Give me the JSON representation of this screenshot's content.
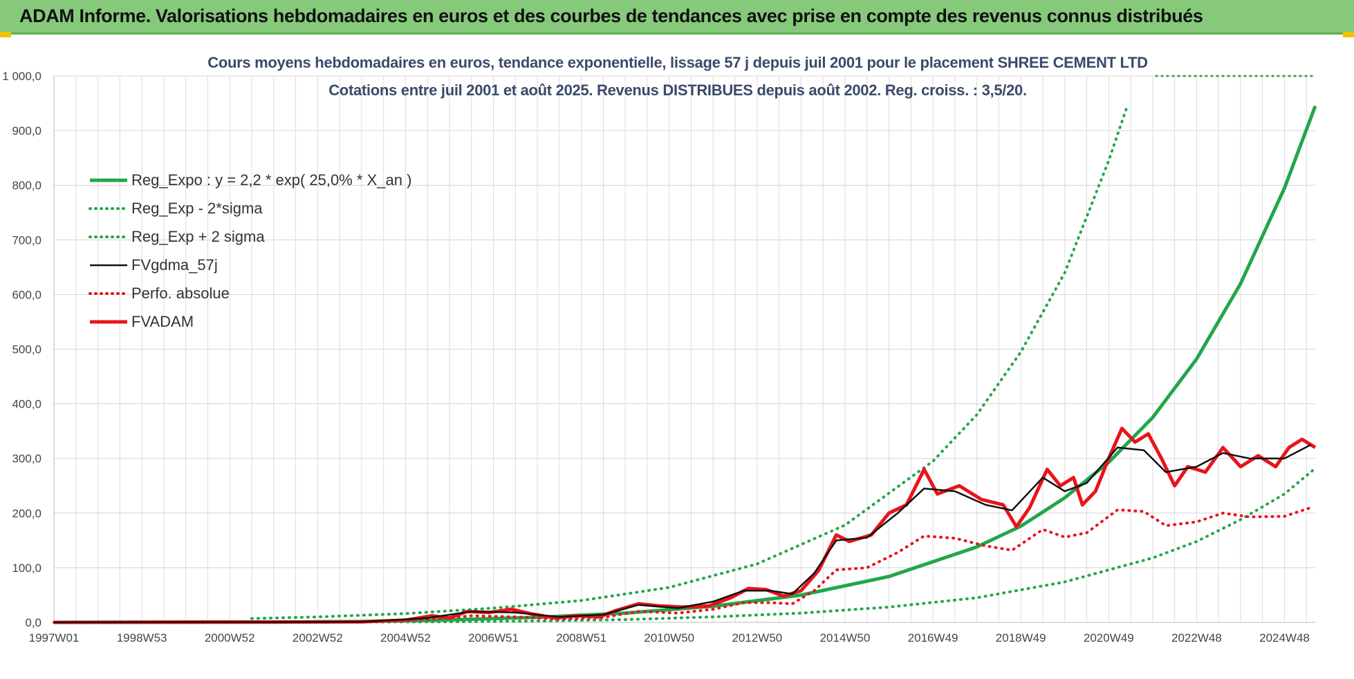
{
  "header": {
    "title": "ADAM Informe. Valorisations hebdomadaires en euros et des courbes de tendances avec prise en compte des revenus connus distribués"
  },
  "chart_data": {
    "type": "line",
    "title_line1": "Cours moyens hebdomadaires en euros, tendance exponentielle, lissage 57 j depuis juil 2001 pour le placement SHREE CEMENT LTD",
    "title_line2": "Cotations entre juil 2001 et août 2025. Revenus DISTRIBUES depuis août 2002. Reg. croiss. : 3,5/20.",
    "xlabel": "",
    "ylabel": "",
    "xlim": [
      1997.0,
      2025.7
    ],
    "ylim": [
      0,
      1000
    ],
    "grid": true,
    "legend_position": "top-left",
    "y_ticks": [
      "0,0",
      "100,0",
      "200,0",
      "300,0",
      "400,0",
      "500,0",
      "600,0",
      "700,0",
      "800,0",
      "900,0",
      "1 000,0"
    ],
    "x_ticks": [
      {
        "x": 1997.0,
        "label": "1997W01"
      },
      {
        "x": 1999.0,
        "label": "1998W53"
      },
      {
        "x": 2001.0,
        "label": "2000W52"
      },
      {
        "x": 2003.0,
        "label": "2002W52"
      },
      {
        "x": 2005.0,
        "label": "2004W52"
      },
      {
        "x": 2007.0,
        "label": "2006W51"
      },
      {
        "x": 2009.0,
        "label": "2008W51"
      },
      {
        "x": 2011.0,
        "label": "2010W50"
      },
      {
        "x": 2013.0,
        "label": "2012W50"
      },
      {
        "x": 2015.0,
        "label": "2014W50"
      },
      {
        "x": 2017.0,
        "label": "2016W49"
      },
      {
        "x": 2019.0,
        "label": "2018W49"
      },
      {
        "x": 2021.0,
        "label": "2020W49"
      },
      {
        "x": 2023.0,
        "label": "2022W48"
      },
      {
        "x": 2025.0,
        "label": "2024W48"
      }
    ],
    "series": [
      {
        "name": "Reg_Expo : y = 2,2 * exp( 25,0% *  X_an )",
        "color": "#22a64a",
        "style": "solid-thick",
        "points": [
          [
            1997.0,
            0.0
          ],
          [
            2002.0,
            0.4
          ],
          [
            2004.0,
            1.5
          ],
          [
            2006.0,
            4.5
          ],
          [
            2008.0,
            9.2
          ],
          [
            2010.0,
            17.0
          ],
          [
            2012.0,
            29.6
          ],
          [
            2014.0,
            50.0
          ],
          [
            2016.0,
            84.0
          ],
          [
            2018.0,
            138.0
          ],
          [
            2019.0,
            176.0
          ],
          [
            2020.0,
            228.0
          ],
          [
            2021.0,
            293.0
          ],
          [
            2022.0,
            375.0
          ],
          [
            2023.0,
            482.0
          ],
          [
            2024.0,
            620.0
          ],
          [
            2025.0,
            795.0
          ],
          [
            2025.7,
            945.0
          ]
        ]
      },
      {
        "name": "Reg_Exp - 2*sigma",
        "color": "#22a64a",
        "style": "dotted",
        "points": [
          [
            2001.5,
            0.0
          ],
          [
            2006.0,
            1.0
          ],
          [
            2008.0,
            2.5
          ],
          [
            2010.0,
            5.0
          ],
          [
            2012.0,
            10.0
          ],
          [
            2014.0,
            17.0
          ],
          [
            2016.0,
            28.0
          ],
          [
            2018.0,
            45.0
          ],
          [
            2020.0,
            74.0
          ],
          [
            2022.0,
            118.0
          ],
          [
            2023.0,
            148.0
          ],
          [
            2024.0,
            188.0
          ],
          [
            2025.0,
            235.0
          ],
          [
            2025.7,
            282.0
          ]
        ]
      },
      {
        "name": "Reg_Exp + 2 sigma",
        "color": "#22a64a",
        "style": "dotted",
        "points": [
          [
            2001.5,
            7.0
          ],
          [
            2003.0,
            10.0
          ],
          [
            2005.0,
            16.0
          ],
          [
            2007.0,
            26.0
          ],
          [
            2009.0,
            40.0
          ],
          [
            2011.0,
            64.0
          ],
          [
            2013.0,
            107.0
          ],
          [
            2015.0,
            178.0
          ],
          [
            2017.0,
            295.0
          ],
          [
            2018.0,
            380.0
          ],
          [
            2019.0,
            495.0
          ],
          [
            2020.0,
            640.0
          ],
          [
            2021.0,
            845.0
          ],
          [
            2021.4,
            940.0
          ]
        ]
      },
      {
        "name": "FVgdma_57j",
        "color": "#111111",
        "style": "solid",
        "points": [
          [
            1997.0,
            0.0
          ],
          [
            2004.0,
            1.0
          ],
          [
            2005.5,
            8.0
          ],
          [
            2006.5,
            20.0
          ],
          [
            2007.5,
            18.0
          ],
          [
            2008.5,
            10.0
          ],
          [
            2009.5,
            14.0
          ],
          [
            2010.3,
            32.0
          ],
          [
            2011.2,
            26.0
          ],
          [
            2012.0,
            38.0
          ],
          [
            2012.7,
            58.0
          ],
          [
            2013.3,
            58.0
          ],
          [
            2013.8,
            52.0
          ],
          [
            2014.3,
            90.0
          ],
          [
            2014.8,
            150.0
          ],
          [
            2015.5,
            155.0
          ],
          [
            2016.2,
            200.0
          ],
          [
            2016.8,
            245.0
          ],
          [
            2017.5,
            240.0
          ],
          [
            2018.2,
            215.0
          ],
          [
            2018.8,
            205.0
          ],
          [
            2019.5,
            265.0
          ],
          [
            2020.0,
            240.0
          ],
          [
            2020.5,
            255.0
          ],
          [
            2021.2,
            320.0
          ],
          [
            2021.8,
            315.0
          ],
          [
            2022.3,
            275.0
          ],
          [
            2023.0,
            285.0
          ],
          [
            2023.6,
            310.0
          ],
          [
            2024.2,
            300.0
          ],
          [
            2025.0,
            300.0
          ],
          [
            2025.6,
            325.0
          ]
        ]
      },
      {
        "name": "Perfo. absolue",
        "color": "#e8141b",
        "style": "dotted",
        "points": [
          [
            1997.0,
            0.0
          ],
          [
            2004.0,
            0.6
          ],
          [
            2005.5,
            5.0
          ],
          [
            2006.5,
            12.0
          ],
          [
            2007.5,
            10.0
          ],
          [
            2008.5,
            6.0
          ],
          [
            2009.5,
            9.0
          ],
          [
            2010.3,
            20.0
          ],
          [
            2011.2,
            17.0
          ],
          [
            2012.0,
            24.0
          ],
          [
            2012.7,
            36.0
          ],
          [
            2013.3,
            36.0
          ],
          [
            2013.8,
            34.0
          ],
          [
            2014.3,
            58.0
          ],
          [
            2014.8,
            96.0
          ],
          [
            2015.5,
            100.0
          ],
          [
            2016.2,
            128.0
          ],
          [
            2016.8,
            158.0
          ],
          [
            2017.5,
            154.0
          ],
          [
            2018.2,
            140.0
          ],
          [
            2018.8,
            132.0
          ],
          [
            2019.5,
            170.0
          ],
          [
            2020.0,
            156.0
          ],
          [
            2020.5,
            164.0
          ],
          [
            2021.2,
            206.0
          ],
          [
            2021.8,
            203.0
          ],
          [
            2022.3,
            177.0
          ],
          [
            2023.0,
            184.0
          ],
          [
            2023.6,
            200.0
          ],
          [
            2024.2,
            193.0
          ],
          [
            2025.0,
            194.0
          ],
          [
            2025.6,
            210.0
          ]
        ]
      },
      {
        "name": "FVADAM",
        "color": "#e8141b",
        "style": "solid-thick",
        "points": [
          [
            1997.0,
            0.0
          ],
          [
            2004.0,
            1.0
          ],
          [
            2005.0,
            4.0
          ],
          [
            2005.6,
            12.0
          ],
          [
            2006.0,
            8.0
          ],
          [
            2006.4,
            20.0
          ],
          [
            2006.9,
            18.0
          ],
          [
            2007.4,
            24.0
          ],
          [
            2007.9,
            15.0
          ],
          [
            2008.4,
            8.0
          ],
          [
            2008.9,
            12.0
          ],
          [
            2009.4,
            10.0
          ],
          [
            2009.8,
            22.0
          ],
          [
            2010.3,
            34.0
          ],
          [
            2010.8,
            30.0
          ],
          [
            2011.3,
            28.0
          ],
          [
            2011.9,
            30.0
          ],
          [
            2012.4,
            45.0
          ],
          [
            2012.8,
            62.0
          ],
          [
            2013.2,
            60.0
          ],
          [
            2013.6,
            48.0
          ],
          [
            2014.0,
            58.0
          ],
          [
            2014.4,
            95.0
          ],
          [
            2014.8,
            160.0
          ],
          [
            2015.1,
            148.0
          ],
          [
            2015.6,
            160.0
          ],
          [
            2016.0,
            200.0
          ],
          [
            2016.4,
            215.0
          ],
          [
            2016.8,
            280.0
          ],
          [
            2017.1,
            235.0
          ],
          [
            2017.6,
            250.0
          ],
          [
            2018.1,
            225.0
          ],
          [
            2018.6,
            215.0
          ],
          [
            2018.9,
            175.0
          ],
          [
            2019.2,
            210.0
          ],
          [
            2019.6,
            280.0
          ],
          [
            2019.9,
            250.0
          ],
          [
            2020.2,
            265.0
          ],
          [
            2020.4,
            215.0
          ],
          [
            2020.7,
            240.0
          ],
          [
            2021.0,
            300.0
          ],
          [
            2021.3,
            355.0
          ],
          [
            2021.6,
            330.0
          ],
          [
            2021.9,
            345.0
          ],
          [
            2022.2,
            300.0
          ],
          [
            2022.5,
            250.0
          ],
          [
            2022.8,
            285.0
          ],
          [
            2023.2,
            275.0
          ],
          [
            2023.6,
            320.0
          ],
          [
            2024.0,
            285.0
          ],
          [
            2024.4,
            305.0
          ],
          [
            2024.8,
            285.0
          ],
          [
            2025.1,
            320.0
          ],
          [
            2025.4,
            335.0
          ],
          [
            2025.7,
            320.0
          ]
        ]
      }
    ]
  }
}
